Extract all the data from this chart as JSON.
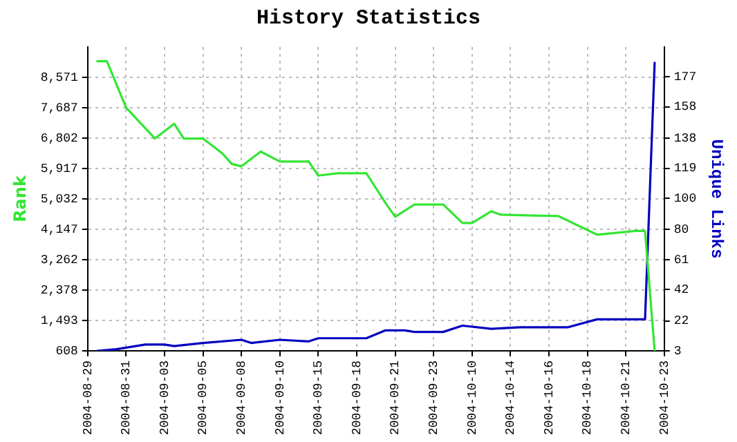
{
  "chart_data": {
    "type": "line",
    "title": "History Statistics",
    "ylabel": "Rank",
    "y2label": "Unique Links",
    "categories": [
      "2004-08-29",
      null,
      null,
      null,
      "2004-08-31",
      null,
      null,
      null,
      "2004-09-03",
      null,
      null,
      null,
      "2004-09-05",
      null,
      null,
      null,
      "2004-09-08",
      null,
      null,
      null,
      "2004-09-10",
      null,
      null,
      null,
      "2004-09-15",
      null,
      null,
      null,
      "2004-09-18",
      null,
      null,
      null,
      "2004-09-21",
      null,
      null,
      null,
      "2004-09-23",
      null,
      null,
      null,
      "2004-10-10",
      null,
      null,
      null,
      "2004-10-14",
      null,
      null,
      null,
      "2004-10-16",
      null,
      null,
      null,
      "2004-10-18",
      null,
      null,
      null,
      "2004-10-21",
      null,
      null,
      null,
      "2004-10-23"
    ],
    "series": [
      {
        "color": "#33e633",
        "values": [
          null,
          9040,
          9040,
          null,
          7690,
          null,
          null,
          6790,
          null,
          7220,
          6790,
          null,
          6790,
          null,
          6360,
          6050,
          5980,
          null,
          6410,
          null,
          6120,
          null,
          null,
          6120,
          5710,
          null,
          5780,
          null,
          null,
          5780,
          null,
          4910,
          4510,
          null,
          4870,
          null,
          null,
          4870,
          null,
          4330,
          4330,
          null,
          4670,
          4570,
          null,
          null,
          null,
          null,
          null,
          4530,
          null,
          null,
          null,
          3990,
          null,
          null,
          null,
          4100,
          4100,
          610,
          null
        ]
      },
      {
        "color": "#0000c0",
        "axis": "y2",
        "values": [
          null,
          3,
          null,
          4,
          null,
          null,
          7,
          null,
          7,
          6,
          null,
          null,
          8,
          null,
          null,
          null,
          10,
          8,
          null,
          null,
          10,
          null,
          null,
          9,
          11,
          null,
          null,
          null,
          null,
          11,
          null,
          16,
          null,
          16,
          15,
          null,
          null,
          15,
          null,
          19,
          null,
          null,
          17,
          null,
          null,
          18,
          null,
          null,
          null,
          null,
          18,
          null,
          null,
          23,
          null,
          null,
          null,
          null,
          23,
          186,
          null
        ]
      }
    ],
    "ylim": [
      608,
      9456
    ],
    "yticks": [
      {
        "value": 608,
        "label": "608"
      },
      {
        "value": 1493,
        "label": "1,493"
      },
      {
        "value": 2378,
        "label": "2,378"
      },
      {
        "value": 3262,
        "label": "3,262"
      },
      {
        "value": 4147,
        "label": "4,147"
      },
      {
        "value": 5032,
        "label": "5,032"
      },
      {
        "value": 5917,
        "label": "5,917"
      },
      {
        "value": 6802,
        "label": "6,802"
      },
      {
        "value": 7687,
        "label": "7,687"
      },
      {
        "value": 8571,
        "label": "8,571"
      }
    ],
    "y2lim": [
      3,
      196
    ],
    "y2ticks": [
      3,
      22,
      42,
      61,
      80,
      100,
      119,
      138,
      158,
      177
    ],
    "grid": true,
    "legend": false,
    "marker": "none",
    "line_style": "solid"
  }
}
